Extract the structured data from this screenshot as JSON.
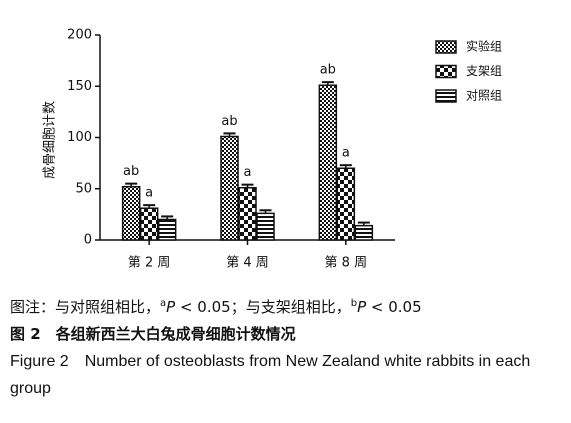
{
  "chart_data": {
    "type": "bar",
    "y_label": "成骨细胞计数",
    "categories": [
      "第 2 周",
      "第 4 周",
      "第 8 周"
    ],
    "series": [
      {
        "name": "实验组",
        "pattern": "crosshatch",
        "color": "#111111",
        "values": [
          52,
          101,
          151
        ],
        "errors": [
          3,
          3,
          3
        ],
        "significance": [
          "ab",
          "ab",
          "ab"
        ]
      },
      {
        "name": "支架组",
        "pattern": "checker",
        "color": "#111111",
        "values": [
          31,
          51,
          70
        ],
        "errors": [
          3,
          3,
          3
        ],
        "significance": [
          "a",
          "a",
          "a"
        ]
      },
      {
        "name": "对照组",
        "pattern": "hlines",
        "color": "#111111",
        "values": [
          20,
          26,
          14
        ],
        "errors": [
          3,
          3,
          3
        ]
      }
    ],
    "ylim": [
      0,
      200
    ],
    "yticks": [
      0,
      50,
      100,
      150,
      200
    ],
    "grid": false,
    "legend": "top-right"
  },
  "caption": {
    "note": [
      "图注：与对照组相比，",
      "a",
      "P",
      " < 0.05；与支架组相比，",
      "b",
      "P",
      " < 0.05"
    ],
    "title_cn": "图 2　各组新西兰大白兔成骨细胞计数情况",
    "title_en": "Figure 2　Number of osteoblasts from New Zealand white rabbits in each group"
  }
}
